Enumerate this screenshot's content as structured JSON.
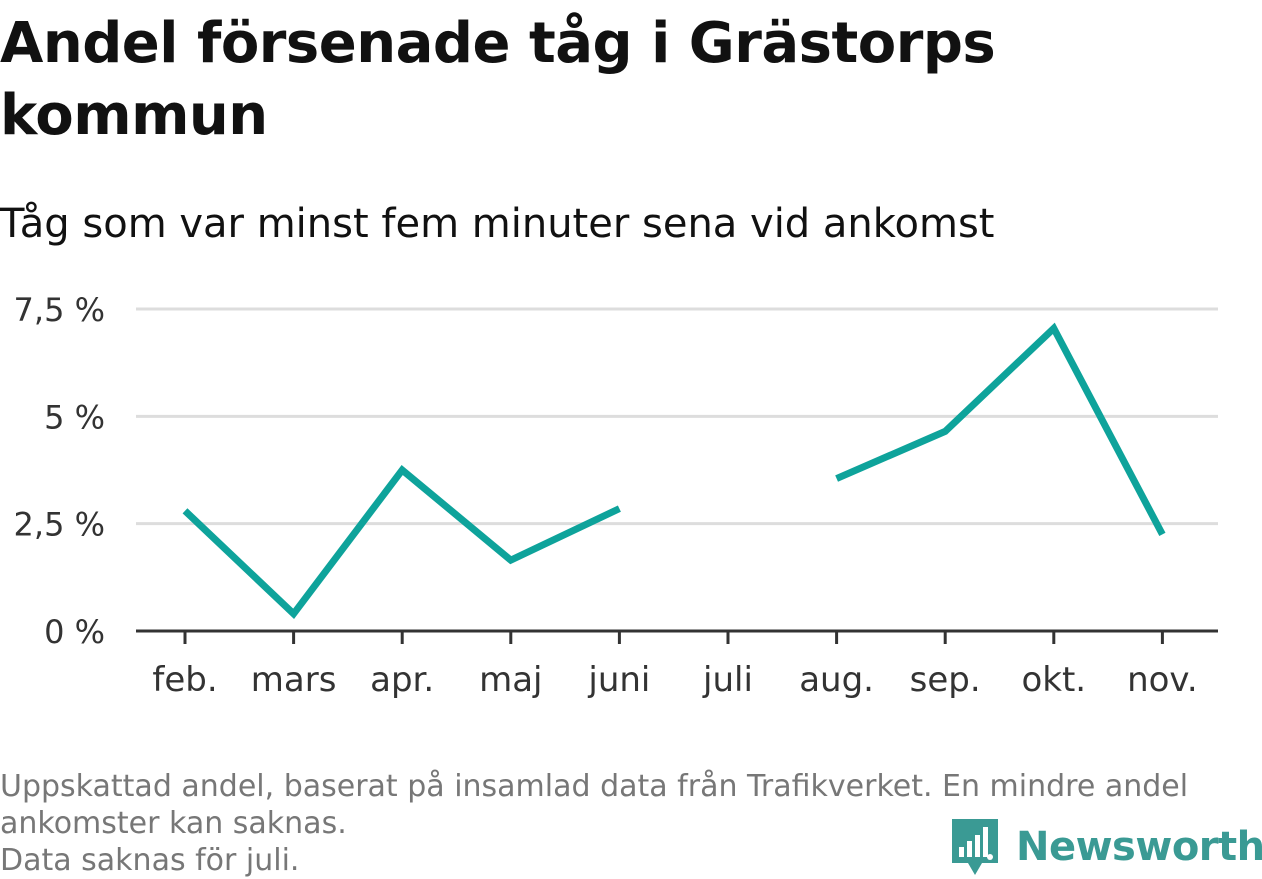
{
  "header": {
    "title": "Andel försenade tåg i Grästorps kommun",
    "subtitle": "Tåg som var minst fem minuter sena vid ankomst"
  },
  "chart_data": {
    "type": "line",
    "title": "Andel försenade tåg i Grästorps kommun",
    "subtitle": "Tåg som var minst fem minuter sena vid ankomst",
    "xlabel": "",
    "ylabel": "",
    "categories": [
      "feb.",
      "mars",
      "apr.",
      "maj",
      "juni",
      "juli",
      "aug.",
      "sep.",
      "okt.",
      "nov."
    ],
    "series": [
      {
        "values": [
          2.8,
          0.4,
          3.75,
          1.65,
          2.85,
          null,
          3.55,
          4.65,
          7.05,
          2.25
        ],
        "color": "#0ea39b"
      }
    ],
    "yticks": [
      "0 %",
      "2,5 %",
      "5 %",
      "7,5 %"
    ],
    "ytick_values": [
      0,
      2.5,
      5,
      7.5
    ],
    "ylim": [
      0,
      7.5
    ],
    "grid": true,
    "legend": "none"
  },
  "footnote": {
    "line1": "Uppskattad andel, baserat på insamlad data från Trafikverket. En mindre andel",
    "line2": "ankomster kan saknas.",
    "line3": "Data saknas för juli."
  },
  "brand": {
    "name": "Newsworthy",
    "logo_icon": "newsworthy-logo-icon",
    "color": "#3a9a94"
  },
  "colors": {
    "line": "#0ea39b",
    "grid": "#dddddd",
    "axis": "#333333",
    "tick_text": "#333333",
    "footnote": "#777777"
  }
}
